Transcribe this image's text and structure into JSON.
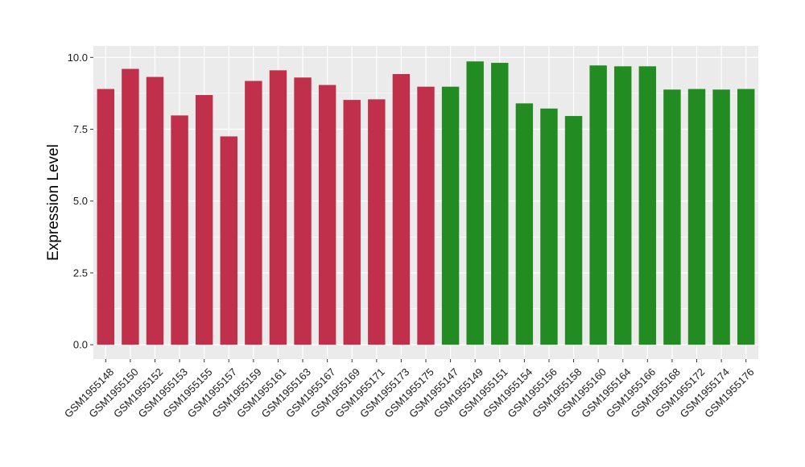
{
  "chart_data": {
    "type": "bar",
    "xlabel": "",
    "ylabel": "Expression Level",
    "ylim": [
      -0.5,
      10.4
    ],
    "yticks": [
      0.0,
      2.5,
      5.0,
      7.5,
      10.0
    ],
    "ytick_labels": [
      "0.0",
      "2.5",
      "5.0",
      "7.5",
      "10.0"
    ],
    "grid": true,
    "legend": "none",
    "background_color": "#EBEBEB",
    "grid_color": "#FFFFFF",
    "categories": [
      "GSM1955148",
      "GSM1955150",
      "GSM1955152",
      "GSM1955153",
      "GSM1955155",
      "GSM1955157",
      "GSM1955159",
      "GSM1955161",
      "GSM1955163",
      "GSM1955167",
      "GSM1955169",
      "GSM1955171",
      "GSM1955173",
      "GSM1955175",
      "GSM1955147",
      "GSM1955149",
      "GSM1955151",
      "GSM1955154",
      "GSM1955156",
      "GSM1955158",
      "GSM1955160",
      "GSM1955164",
      "GSM1955166",
      "GSM1955168",
      "GSM1955172",
      "GSM1955174",
      "GSM1955176"
    ],
    "values": [
      8.9,
      9.6,
      9.32,
      7.98,
      8.69,
      7.25,
      9.18,
      9.55,
      9.3,
      9.04,
      8.52,
      8.54,
      9.42,
      8.98,
      8.98,
      9.86,
      9.81,
      8.4,
      8.22,
      7.96,
      9.72,
      9.69,
      9.69,
      8.88,
      8.9,
      8.88,
      8.9
    ],
    "bar_colors": [
      "#C1304A",
      "#C1304A",
      "#C1304A",
      "#C1304A",
      "#C1304A",
      "#C1304A",
      "#C1304A",
      "#C1304A",
      "#C1304A",
      "#C1304A",
      "#C1304A",
      "#C1304A",
      "#C1304A",
      "#C1304A",
      "#228B22",
      "#228B22",
      "#228B22",
      "#228B22",
      "#228B22",
      "#228B22",
      "#228B22",
      "#228B22",
      "#228B22",
      "#228B22",
      "#228B22",
      "#228B22",
      "#228B22"
    ]
  }
}
